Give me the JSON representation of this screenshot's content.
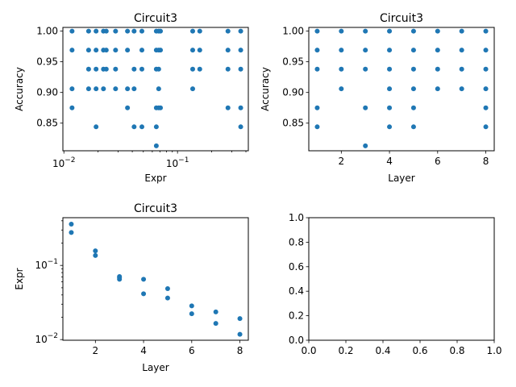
{
  "chart_data": [
    {
      "type": "scatter",
      "title": "Circuit3",
      "xlabel": "Expr",
      "ylabel": "Accuracy",
      "xscale": "log",
      "xlim": [
        0.0098,
        0.42
      ],
      "ylim": [
        0.805,
        1.006
      ],
      "xticks": [
        {
          "value": 0.01,
          "base": "10",
          "exp": "−2"
        },
        {
          "value": 0.1,
          "base": "10",
          "exp": "−1"
        }
      ],
      "yticks": [
        {
          "value": 0.85,
          "label": "0.85"
        },
        {
          "value": 0.9,
          "label": "0.90"
        },
        {
          "value": 0.95,
          "label": "0.95"
        },
        {
          "value": 1.0,
          "label": "1.00"
        }
      ],
      "color": "#1f77b4",
      "points": [
        [
          0.0118,
          1.0
        ],
        [
          0.0118,
          0.969
        ],
        [
          0.0118,
          0.906
        ],
        [
          0.0118,
          0.875
        ],
        [
          0.0165,
          1.0
        ],
        [
          0.0165,
          0.969
        ],
        [
          0.0165,
          0.938
        ],
        [
          0.0165,
          0.906
        ],
        [
          0.0192,
          1.0
        ],
        [
          0.0192,
          0.969
        ],
        [
          0.0192,
          0.938
        ],
        [
          0.0192,
          0.906
        ],
        [
          0.0192,
          0.844
        ],
        [
          0.0223,
          1.0
        ],
        [
          0.0223,
          0.969
        ],
        [
          0.0223,
          0.938
        ],
        [
          0.0223,
          0.906
        ],
        [
          0.0236,
          1.0
        ],
        [
          0.0236,
          0.969
        ],
        [
          0.0236,
          0.938
        ],
        [
          0.0285,
          1.0
        ],
        [
          0.0285,
          0.969
        ],
        [
          0.0285,
          0.938
        ],
        [
          0.0285,
          0.906
        ],
        [
          0.0363,
          1.0
        ],
        [
          0.0363,
          0.969
        ],
        [
          0.0363,
          0.906
        ],
        [
          0.0363,
          0.875
        ],
        [
          0.0415,
          1.0
        ],
        [
          0.0415,
          0.938
        ],
        [
          0.0415,
          0.906
        ],
        [
          0.0415,
          0.844
        ],
        [
          0.0486,
          1.0
        ],
        [
          0.0486,
          0.969
        ],
        [
          0.0486,
          0.938
        ],
        [
          0.0486,
          0.844
        ],
        [
          0.0651,
          1.0
        ],
        [
          0.0651,
          0.969
        ],
        [
          0.0651,
          0.938
        ],
        [
          0.0651,
          0.875
        ],
        [
          0.0651,
          0.844
        ],
        [
          0.0651,
          0.813
        ],
        [
          0.0683,
          1.0
        ],
        [
          0.0683,
          0.969
        ],
        [
          0.0683,
          0.938
        ],
        [
          0.0683,
          0.906
        ],
        [
          0.0683,
          0.875
        ],
        [
          0.0708,
          1.0
        ],
        [
          0.0708,
          0.969
        ],
        [
          0.0708,
          0.875
        ],
        [
          0.136,
          1.0
        ],
        [
          0.136,
          0.969
        ],
        [
          0.136,
          0.938
        ],
        [
          0.136,
          0.906
        ],
        [
          0.157,
          1.0
        ],
        [
          0.157,
          0.969
        ],
        [
          0.157,
          0.938
        ],
        [
          0.278,
          1.0
        ],
        [
          0.278,
          0.969
        ],
        [
          0.278,
          0.938
        ],
        [
          0.278,
          0.875
        ],
        [
          0.36,
          1.0
        ],
        [
          0.36,
          0.969
        ],
        [
          0.36,
          0.938
        ],
        [
          0.36,
          0.875
        ],
        [
          0.36,
          0.844
        ]
      ]
    },
    {
      "type": "scatter",
      "title": "Circuit3",
      "xlabel": "Layer",
      "ylabel": "Accuracy",
      "xscale": "linear",
      "xlim": [
        0.65,
        8.35
      ],
      "ylim": [
        0.805,
        1.006
      ],
      "xticks": [
        {
          "value": 2,
          "label": "2"
        },
        {
          "value": 4,
          "label": "4"
        },
        {
          "value": 6,
          "label": "6"
        },
        {
          "value": 8,
          "label": "8"
        }
      ],
      "yticks": [
        {
          "value": 0.85,
          "label": "0.85"
        },
        {
          "value": 0.9,
          "label": "0.90"
        },
        {
          "value": 0.95,
          "label": "0.95"
        },
        {
          "value": 1.0,
          "label": "1.00"
        }
      ],
      "color": "#1f77b4",
      "points": [
        [
          1,
          1.0
        ],
        [
          1,
          0.969
        ],
        [
          1,
          0.938
        ],
        [
          1,
          0.875
        ],
        [
          1,
          0.844
        ],
        [
          2,
          1.0
        ],
        [
          2,
          0.969
        ],
        [
          2,
          0.938
        ],
        [
          2,
          0.906
        ],
        [
          3,
          1.0
        ],
        [
          3,
          0.969
        ],
        [
          3,
          0.938
        ],
        [
          3,
          0.875
        ],
        [
          3,
          0.813
        ],
        [
          4,
          1.0
        ],
        [
          4,
          0.969
        ],
        [
          4,
          0.938
        ],
        [
          4,
          0.906
        ],
        [
          4,
          0.875
        ],
        [
          4,
          0.844
        ],
        [
          5,
          1.0
        ],
        [
          5,
          0.969
        ],
        [
          5,
          0.938
        ],
        [
          5,
          0.906
        ],
        [
          5,
          0.875
        ],
        [
          5,
          0.844
        ],
        [
          6,
          1.0
        ],
        [
          6,
          0.969
        ],
        [
          6,
          0.938
        ],
        [
          6,
          0.906
        ],
        [
          7,
          1.0
        ],
        [
          7,
          0.969
        ],
        [
          7,
          0.938
        ],
        [
          7,
          0.906
        ],
        [
          8,
          1.0
        ],
        [
          8,
          0.969
        ],
        [
          8,
          0.938
        ],
        [
          8,
          0.906
        ],
        [
          8,
          0.875
        ],
        [
          8,
          0.844
        ]
      ]
    },
    {
      "type": "scatter",
      "title": "Circuit3",
      "xlabel": "Layer",
      "ylabel": "Expr",
      "xscale": "linear",
      "yscale": "log",
      "xlim": [
        0.65,
        8.35
      ],
      "ylim": [
        0.0098,
        0.44
      ],
      "xticks": [
        {
          "value": 2,
          "label": "2"
        },
        {
          "value": 4,
          "label": "4"
        },
        {
          "value": 6,
          "label": "6"
        },
        {
          "value": 8,
          "label": "8"
        }
      ],
      "yticks": [
        {
          "value": 0.01,
          "base": "10",
          "exp": "−2"
        },
        {
          "value": 0.1,
          "base": "10",
          "exp": "−1"
        }
      ],
      "color": "#1f77b4",
      "points": [
        [
          1,
          0.36
        ],
        [
          1,
          0.278
        ],
        [
          2,
          0.157
        ],
        [
          2,
          0.136
        ],
        [
          3,
          0.0708
        ],
        [
          3,
          0.0683
        ],
        [
          3,
          0.0651
        ],
        [
          4,
          0.0651
        ],
        [
          4,
          0.0415
        ],
        [
          5,
          0.0486
        ],
        [
          5,
          0.0363
        ],
        [
          6,
          0.0285
        ],
        [
          6,
          0.0223
        ],
        [
          7,
          0.0236
        ],
        [
          7,
          0.0165
        ],
        [
          8,
          0.0192
        ],
        [
          8,
          0.0118
        ]
      ]
    },
    {
      "type": "scatter",
      "title": "",
      "xlabel": "",
      "ylabel": "",
      "xscale": "linear",
      "xlim": [
        0,
        1
      ],
      "ylim": [
        0,
        1
      ],
      "xticks": [
        {
          "value": 0.0,
          "label": "0.0"
        },
        {
          "value": 0.2,
          "label": "0.2"
        },
        {
          "value": 0.4,
          "label": "0.4"
        },
        {
          "value": 0.6,
          "label": "0.6"
        },
        {
          "value": 0.8,
          "label": "0.8"
        },
        {
          "value": 1.0,
          "label": "1.0"
        }
      ],
      "yticks": [
        {
          "value": 0.0,
          "label": "0.0"
        },
        {
          "value": 0.2,
          "label": "0.2"
        },
        {
          "value": 0.4,
          "label": "0.4"
        },
        {
          "value": 0.6,
          "label": "0.6"
        },
        {
          "value": 0.8,
          "label": "0.8"
        },
        {
          "value": 1.0,
          "label": "1.0"
        }
      ],
      "color": "#1f77b4",
      "points": []
    }
  ]
}
